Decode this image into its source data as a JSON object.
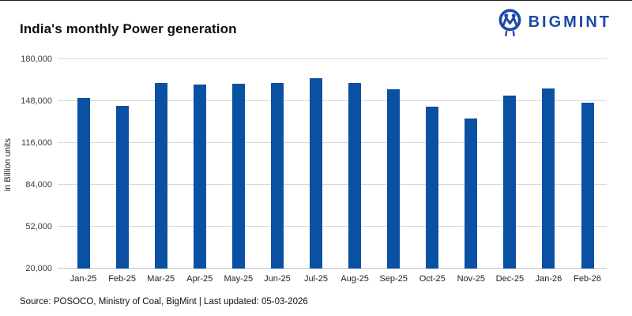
{
  "header": {
    "title": "India's monthly Power generation",
    "logo": {
      "brand": "BIGMINT",
      "color": "#1E48A8",
      "icon": "bigmint-walrus-icon"
    }
  },
  "chart_data": {
    "type": "bar",
    "title": "India's monthly Power generation",
    "categories": [
      "Jan-25",
      "Feb-25",
      "Mar-25",
      "Apr-25",
      "May-25",
      "Jun-25",
      "Jul-25",
      "Aug-25",
      "Sep-25",
      "Oct-25",
      "Nov-25",
      "Dec-25",
      "Jan-26",
      "Feb-26"
    ],
    "values": [
      150500,
      144500,
      162000,
      160500,
      161500,
      162000,
      165500,
      162000,
      157000,
      143500,
      135000,
      152000,
      157500,
      146500
    ],
    "xlabel": "",
    "ylabel": "in Billion units",
    "ylim": [
      20000,
      180000
    ],
    "yticks": [
      20000,
      52000,
      84000,
      116000,
      148000,
      180000
    ],
    "ytick_labels": [
      "20,000",
      "52,000",
      "84,000",
      "116,000",
      "148,000",
      "180,000"
    ],
    "bar_color": "#0A50A3",
    "gridline_color": "#d9d9d9",
    "grid": true,
    "legend": false
  },
  "footer": {
    "source": "Source: POSOCO, Ministry of Coal, BigMint | Last updated: 05-03-2026"
  }
}
